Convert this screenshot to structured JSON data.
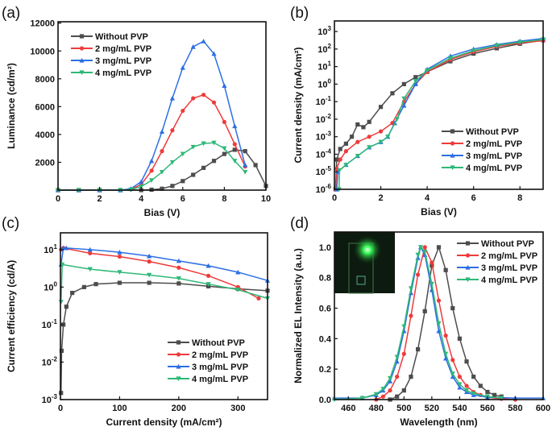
{
  "series_style": {
    "colors": [
      "#4d4d4d",
      "#ee3b3b",
      "#2d6fe3",
      "#2fb878"
    ],
    "markers": [
      "square",
      "circle",
      "triangle-up",
      "triangle-down"
    ]
  },
  "chart_data": [
    {
      "panel": "(a)",
      "type": "line",
      "xlabel": "Bias (V)",
      "ylabel": "Luminance (cd/m²)",
      "xlim": [
        0,
        10
      ],
      "ylim": [
        0,
        12100
      ],
      "yscale": "linear",
      "xticks": [
        0,
        2,
        4,
        6,
        8,
        10
      ],
      "yticks": [
        2000,
        4000,
        6000,
        8000,
        10000,
        12000
      ],
      "legend": "top-left",
      "series": [
        {
          "name": "Without PVP",
          "x": [
            0,
            1,
            2,
            3,
            4,
            4.5,
            5,
            5.5,
            6,
            6.5,
            7,
            7.5,
            8,
            8.5,
            9,
            9.5,
            10
          ],
          "y": [
            0,
            0,
            0,
            0,
            0,
            30,
            100,
            300,
            650,
            1100,
            1600,
            2100,
            2600,
            2900,
            2800,
            1800,
            300
          ]
        },
        {
          "name": "2 mg/mL PVP",
          "x": [
            0,
            1,
            2,
            3,
            3.5,
            4,
            4.5,
            5,
            5.5,
            6,
            6.5,
            7,
            7.5,
            8,
            8.5,
            9
          ],
          "y": [
            0,
            0,
            0,
            0,
            50,
            400,
            1400,
            2800,
            4300,
            5700,
            6600,
            6850,
            6300,
            4900,
            3300,
            1700
          ]
        },
        {
          "name": "3 mg/mL PVP",
          "x": [
            0,
            1,
            2,
            3,
            3.5,
            4,
            4.5,
            5,
            5.5,
            6,
            6.5,
            7,
            7.5,
            8,
            8.5,
            9
          ],
          "y": [
            0,
            0,
            0,
            0,
            100,
            600,
            2100,
            4200,
            6600,
            8800,
            10300,
            10700,
            9800,
            7500,
            4600,
            1800
          ]
        },
        {
          "name": "4 mg/mL PVP",
          "x": [
            0,
            1,
            2,
            3,
            3.5,
            4,
            4.5,
            5,
            5.5,
            6,
            6.5,
            7,
            7.5,
            8,
            8.5,
            9
          ],
          "y": [
            0,
            0,
            0,
            0,
            30,
            250,
            700,
            1300,
            2000,
            2600,
            3100,
            3350,
            3400,
            3000,
            2100,
            1300
          ]
        }
      ]
    },
    {
      "panel": "(b)",
      "type": "line",
      "xlabel": "Bias (V)",
      "ylabel": "Current density (mA/cm²)",
      "xlim": [
        0,
        9
      ],
      "ylim": [
        1e-06,
        4000
      ],
      "yscale": "log",
      "xticks": [
        0,
        2,
        4,
        6,
        8
      ],
      "yticks": [
        1e-06,
        1e-05,
        0.0001,
        0.001,
        0.01,
        0.1,
        1,
        10,
        100,
        1000
      ],
      "legend": "bottom-right",
      "series": [
        {
          "name": "Without PVP",
          "x": [
            0.05,
            0.1,
            0.25,
            0.5,
            0.75,
            1.0,
            1.25,
            1.5,
            2,
            2.5,
            3,
            3.5,
            4,
            5,
            6,
            7,
            8,
            9
          ],
          "y": [
            1e-06,
            5e-05,
            0.0002,
            0.0004,
            0.001,
            0.005,
            0.0035,
            0.007,
            0.05,
            0.3,
            1,
            2.5,
            5,
            20,
            55,
            110,
            200,
            320
          ]
        },
        {
          "name": "2 mg/mL PVP",
          "x": [
            0.05,
            0.1,
            0.25,
            0.5,
            1,
            1.5,
            2,
            2.5,
            3,
            3.5,
            4,
            5,
            6,
            7,
            8,
            9
          ],
          "y": [
            1e-06,
            1.5e-05,
            5e-05,
            0.00015,
            0.0005,
            0.001,
            0.002,
            0.006,
            0.1,
            1,
            5,
            25,
            70,
            140,
            220,
            300
          ]
        },
        {
          "name": "3 mg/mL PVP",
          "x": [
            0.1,
            0.15,
            0.5,
            1,
            1.5,
            2,
            2.3,
            2.6,
            3,
            3.5,
            4,
            5,
            6,
            7,
            8,
            9
          ],
          "y": [
            1e-06,
            1e-05,
            2.5e-05,
            8e-05,
            0.00025,
            0.0005,
            0.001,
            0.006,
            0.06,
            1,
            7,
            40,
            100,
            180,
            280,
            400
          ]
        },
        {
          "name": "4 mg/mL PVP",
          "x": [
            0.2,
            0.22,
            0.5,
            1,
            1.5,
            2,
            2.3,
            2.7,
            3,
            3.5,
            4,
            5,
            6,
            7,
            8,
            9
          ],
          "y": [
            1e-06,
            1.2e-05,
            2.5e-05,
            8e-05,
            0.00025,
            0.0005,
            0.001,
            0.01,
            0.15,
            1.5,
            6,
            30,
            80,
            160,
            250,
            350
          ]
        }
      ]
    },
    {
      "panel": "(c)",
      "type": "line",
      "xlabel": "Current density (mA/cm²)",
      "ylabel": "Current efficiency (cd/A)",
      "xlim": [
        0,
        350
      ],
      "ylim": [
        0.001,
        28
      ],
      "yscale": "log",
      "xticks": [
        0,
        100,
        200,
        300
      ],
      "yticks": [
        0.001,
        0.01,
        0.1,
        1,
        10
      ],
      "legend": "bottom-right",
      "series": [
        {
          "name": "Without PVP",
          "x": [
            1,
            2,
            5,
            10,
            20,
            40,
            60,
            100,
            150,
            200,
            250,
            300,
            350
          ],
          "y": [
            0.0015,
            0.02,
            0.1,
            0.3,
            0.7,
            1.0,
            1.2,
            1.3,
            1.3,
            1.25,
            1.05,
            0.9,
            0.8
          ]
        },
        {
          "name": "2 mg/mL PVP",
          "x": [
            1,
            5,
            50,
            100,
            150,
            200,
            250,
            300,
            335
          ],
          "y": [
            10,
            11,
            8,
            6.5,
            4.8,
            3.3,
            2,
            1.0,
            0.5
          ]
        },
        {
          "name": "3 mg/mL PVP",
          "x": [
            1,
            5,
            10,
            50,
            100,
            150,
            200,
            250,
            300,
            350
          ],
          "y": [
            4,
            11,
            11,
            10,
            8.5,
            6.7,
            5,
            3.7,
            2.5,
            1.5
          ]
        },
        {
          "name": "4 mg/mL PVP",
          "x": [
            1,
            3,
            50,
            100,
            150,
            200,
            250,
            300,
            350
          ],
          "y": [
            0.4,
            4,
            3,
            2.5,
            2.1,
            1.7,
            1.2,
            0.85,
            0.5
          ]
        }
      ]
    },
    {
      "panel": "(d)",
      "type": "line",
      "xlabel": "Wavelength (nm)",
      "ylabel": "Normalized EL Intensity (a.u.)",
      "xlim": [
        450,
        600
      ],
      "ylim": [
        0,
        1.1
      ],
      "yscale": "linear",
      "xticks": [
        460,
        480,
        500,
        520,
        540,
        560,
        580,
        600
      ],
      "yticks": [
        0,
        0.2,
        0.4,
        0.6,
        0.8,
        1.0
      ],
      "legend": "top-right",
      "inset": "photo of green-emitting device",
      "series": [
        {
          "name": "Without PVP",
          "x": [
            490,
            495,
            500,
            505,
            510,
            515,
            520,
            525,
            530,
            535,
            540,
            545,
            550,
            555,
            560,
            565,
            570
          ],
          "y": [
            0,
            0.02,
            0.06,
            0.15,
            0.33,
            0.58,
            0.88,
            1.0,
            0.85,
            0.6,
            0.4,
            0.25,
            0.15,
            0.09,
            0.05,
            0.03,
            0.02
          ]
        },
        {
          "name": "2 mg/mL PVP",
          "x": [
            480,
            485,
            490,
            495,
            500,
            505,
            510,
            515,
            520,
            525,
            530,
            535,
            540,
            545,
            550,
            555,
            560,
            570,
            580
          ],
          "y": [
            0,
            0.02,
            0.06,
            0.15,
            0.3,
            0.55,
            0.82,
            1.0,
            0.9,
            0.65,
            0.42,
            0.26,
            0.15,
            0.09,
            0.05,
            0.03,
            0.015,
            0.005,
            0
          ]
        },
        {
          "name": "3 mg/mL PVP",
          "x": [
            450,
            470,
            480,
            485,
            490,
            495,
            500,
            505,
            510,
            512,
            515,
            520,
            525,
            530,
            535,
            540,
            545,
            550,
            560,
            580,
            600
          ],
          "y": [
            0.01,
            0.01,
            0.03,
            0.06,
            0.12,
            0.25,
            0.45,
            0.7,
            0.93,
            1.0,
            0.95,
            0.72,
            0.45,
            0.27,
            0.15,
            0.08,
            0.05,
            0.03,
            0.015,
            0.01,
            0.01
          ]
        },
        {
          "name": "4 mg/mL PVP",
          "x": [
            450,
            470,
            480,
            485,
            490,
            495,
            500,
            505,
            510,
            512,
            515,
            520,
            525,
            530,
            535,
            540,
            545,
            550,
            560,
            570
          ],
          "y": [
            0,
            0.01,
            0.035,
            0.07,
            0.14,
            0.28,
            0.48,
            0.73,
            0.95,
            1.0,
            0.97,
            0.76,
            0.5,
            0.3,
            0.17,
            0.1,
            0.06,
            0.04,
            0.02,
            0.01
          ]
        }
      ]
    }
  ]
}
